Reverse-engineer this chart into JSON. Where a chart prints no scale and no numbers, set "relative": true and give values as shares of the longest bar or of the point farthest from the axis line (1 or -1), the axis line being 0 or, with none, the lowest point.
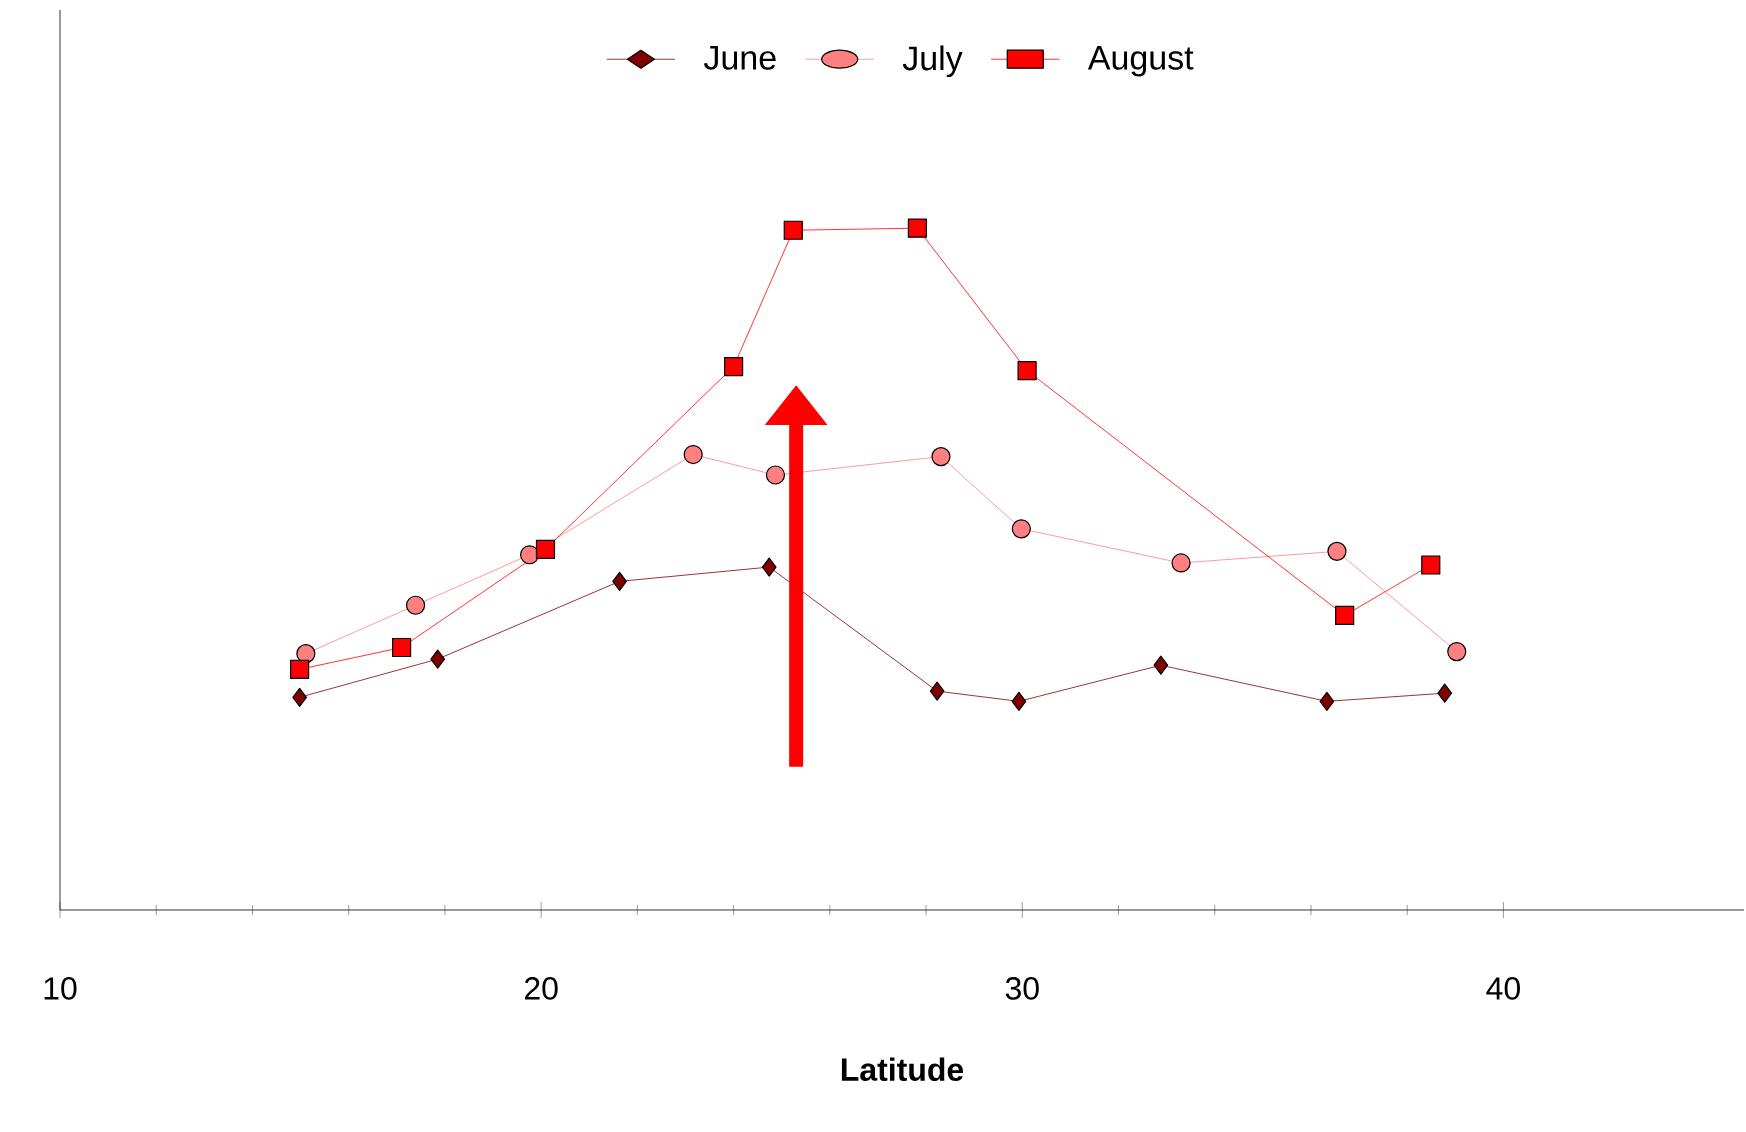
{
  "chart_data": {
    "type": "line",
    "xlabel": "Latitude",
    "relative": true,
    "xlim": [
      10,
      45
    ],
    "xticks": [
      10,
      20,
      30,
      40
    ],
    "grid": false,
    "legend": "top",
    "series": [
      {
        "name": "June",
        "color": "#800000",
        "marker": "diamond",
        "x": [
          14.98,
          17.85,
          21.63,
          24.74,
          28.23,
          29.93,
          32.88,
          36.33,
          38.78
        ],
        "values": [
          0.312,
          0.368,
          0.482,
          0.503,
          0.321,
          0.306,
          0.359,
          0.306,
          0.318
        ]
      },
      {
        "name": "July",
        "color": "#ff8080",
        "marker": "circle",
        "x": [
          15.11,
          17.39,
          19.76,
          23.16,
          24.87,
          28.31,
          29.98,
          33.3,
          36.54,
          39.03
        ],
        "values": [
          0.376,
          0.447,
          0.521,
          0.668,
          0.638,
          0.665,
          0.559,
          0.509,
          0.526,
          0.379
        ]
      },
      {
        "name": "August",
        "color": "#ff0000",
        "marker": "square",
        "x": [
          14.98,
          17.1,
          20.09,
          24.0,
          25.24,
          27.82,
          30.1,
          36.7,
          38.49
        ],
        "values": [
          0.353,
          0.385,
          0.529,
          0.797,
          0.997,
          1.0,
          0.791,
          0.432,
          0.506
        ]
      }
    ]
  }
}
